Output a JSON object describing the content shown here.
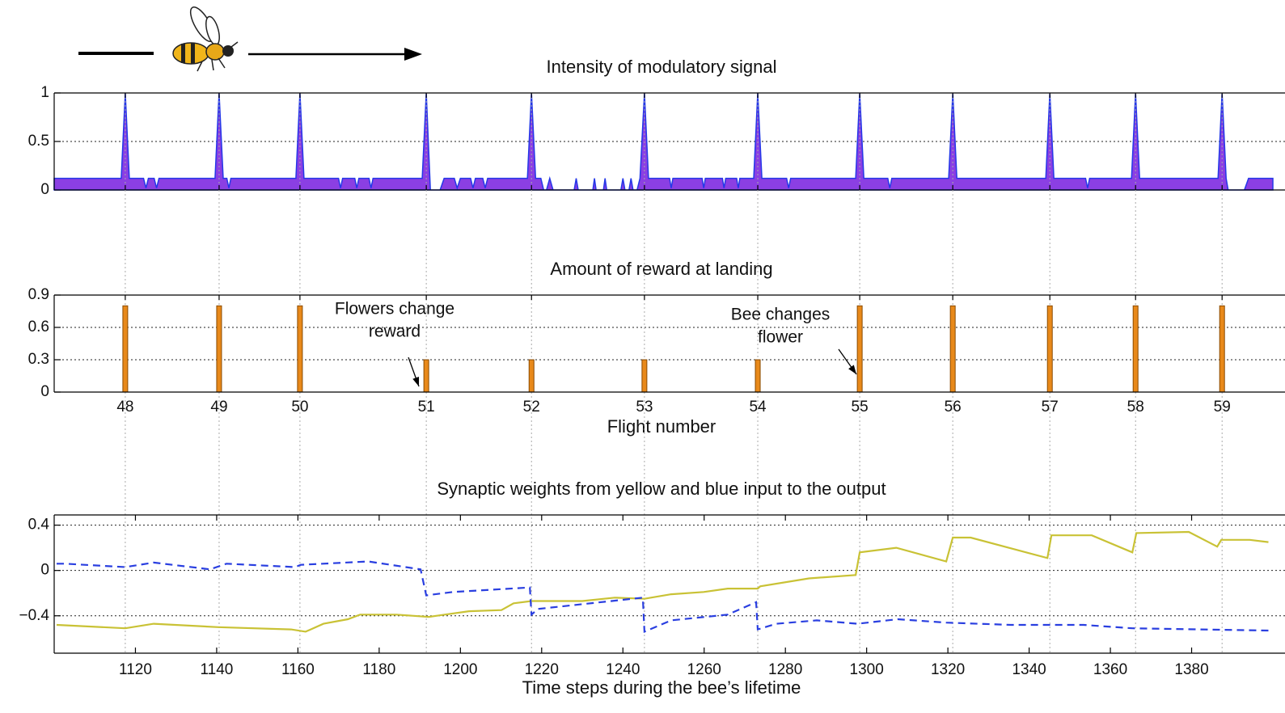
{
  "chart_data": [
    {
      "type": "area",
      "title": "Intensity of modulatory signal",
      "color": "#8b3fe3",
      "line_color": "#2438e8",
      "xlim": [
        1100,
        1400
      ],
      "ylim": [
        0,
        1
      ],
      "yticks": [
        0,
        0.5,
        1
      ],
      "grid": true,
      "x": [
        1100,
        1116.5,
        1117.5,
        1118.5,
        1122,
        1122.6,
        1123.2,
        1124.6,
        1125.2,
        1125.8,
        1139.6,
        1140.6,
        1141.6,
        1142.5,
        1143,
        1143.5,
        1159.5,
        1160.5,
        1161.5,
        1170,
        1170.5,
        1171,
        1174,
        1174.5,
        1175,
        1177.5,
        1178,
        1178.5,
        1190.6,
        1191.6,
        1192.6,
        1195,
        1196,
        1198.5,
        1199.2,
        1200,
        1202.5,
        1203.1,
        1203.7,
        1205.5,
        1206.1,
        1206.7,
        1216.5,
        1217.5,
        1218.5,
        1219.8,
        1220.5,
        1221.2,
        1222,
        1222.8,
        1228,
        1228.5,
        1229,
        1232.6,
        1233,
        1233.4,
        1235.2,
        1235.6,
        1236,
        1239.5,
        1240,
        1240.5,
        1241.5,
        1242,
        1242.5,
        1243.5,
        1244.2,
        1245.3,
        1246.3,
        1251.5,
        1251.9,
        1252.3,
        1259.5,
        1259.9,
        1260.3,
        1264.5,
        1264.9,
        1265.3,
        1268,
        1268.4,
        1268.8,
        1272.2,
        1273.2,
        1274.2,
        1280.3,
        1280.8,
        1281.3,
        1297.3,
        1298.3,
        1299.3,
        1305.2,
        1305.7,
        1306.2,
        1320.2,
        1321.2,
        1322.2,
        1344.1,
        1345.1,
        1346.1,
        1353.9,
        1354.4,
        1354.9,
        1365.2,
        1366.2,
        1367.2,
        1386.5,
        1387.5,
        1388.5,
        1389,
        1393,
        1394,
        1400
      ],
      "values": [
        0.12,
        0.12,
        1,
        0.12,
        0.12,
        0.02,
        0.12,
        0.12,
        0.02,
        0.12,
        0.12,
        1,
        0.12,
        0.12,
        0.02,
        0.12,
        0.12,
        1,
        0.12,
        0.12,
        0.02,
        0.12,
        0.12,
        0.02,
        0.12,
        0.12,
        0.02,
        0.12,
        0.12,
        1,
        0,
        0,
        0.12,
        0.12,
        0.02,
        0.12,
        0.12,
        0.02,
        0.12,
        0.12,
        0.02,
        0.12,
        0.12,
        1,
        0.12,
        0.12,
        0,
        0,
        0.12,
        0,
        0,
        0.12,
        0,
        0,
        0.12,
        0,
        0,
        0.12,
        0,
        0,
        0.12,
        0,
        0,
        0.12,
        0,
        0,
        0.12,
        1,
        0.12,
        0.12,
        0.02,
        0.12,
        0.12,
        0.02,
        0.12,
        0.12,
        0.02,
        0.12,
        0.12,
        0.02,
        0.12,
        0.12,
        1,
        0.12,
        0.12,
        0.02,
        0.12,
        0.12,
        1,
        0.12,
        0.12,
        0.02,
        0.12,
        0.12,
        1,
        0.12,
        0.12,
        1,
        0.12,
        0.12,
        0.02,
        0.12,
        0.12,
        1,
        0.12,
        0.12,
        1,
        0.12,
        0,
        0,
        0.12,
        0.12
      ]
    },
    {
      "type": "bar",
      "title": "Amount of reward at landing",
      "xlabel": "Flight number",
      "color": "#e8891a",
      "categories": [
        "48",
        "49",
        "50",
        "51",
        "52",
        "53",
        "54",
        "55",
        "56",
        "57",
        "58",
        "59"
      ],
      "x": [
        1117.5,
        1140.6,
        1160.5,
        1191.6,
        1217.5,
        1245.3,
        1273.2,
        1298.3,
        1321.2,
        1345.1,
        1366.2,
        1387.5
      ],
      "values": [
        0.8,
        0.8,
        0.8,
        0.3,
        0.3,
        0.3,
        0.3,
        0.8,
        0.8,
        0.8,
        0.8,
        0.8
      ],
      "xlim": [
        1100,
        1400
      ],
      "ylim": [
        0,
        0.9
      ],
      "yticks": [
        0,
        0.3,
        0.6,
        0.9
      ],
      "grid": true,
      "annotations": [
        {
          "lines": [
            "Flowers change",
            "reward"
          ]
        },
        {
          "lines": [
            "Bee changes",
            "flower"
          ]
        }
      ]
    },
    {
      "type": "line",
      "title": "Synaptic weights from yellow and blue input to the output",
      "xlabel": "Time steps during the bee’s lifetime",
      "xlim": [
        1100,
        1400
      ],
      "xticks": [
        1120,
        1140,
        1160,
        1180,
        1200,
        1220,
        1240,
        1260,
        1280,
        1300,
        1320,
        1340,
        1360,
        1380
      ],
      "ylim": [
        -0.73,
        0.49
      ],
      "yticks": [
        {
          "value": -0.4,
          "label": "−0.4"
        },
        0,
        0.4
      ],
      "grid": true,
      "series": [
        {
          "color": "#c9c235",
          "linestyle": "solid",
          "x": [
            1100.6,
            1117.5,
            1124.5,
            1140.4,
            1158.3,
            1161.9,
            1166.3,
            1172.3,
            1175.3,
            1184.2,
            1192.2,
            1194.2,
            1202.1,
            1210.1,
            1213.1,
            1217.5,
            1230,
            1238,
            1245.3,
            1251.9,
            1259.9,
            1265.8,
            1273.2,
            1273.8,
            1285.8,
            1297.3,
            1298.3,
            1307.3,
            1319.6,
            1321.2,
            1325.6,
            1344.5,
            1345.5,
            1355.4,
            1365.4,
            1366.4,
            1379.3,
            1386.3,
            1387.3,
            1394.3,
            1398.9
          ],
          "values": [
            -0.48,
            -0.51,
            -0.47,
            -0.5,
            -0.52,
            -0.54,
            -0.47,
            -0.43,
            -0.39,
            -0.39,
            -0.41,
            -0.4,
            -0.36,
            -0.35,
            -0.29,
            -0.27,
            -0.27,
            -0.24,
            -0.25,
            -0.21,
            -0.19,
            -0.16,
            -0.16,
            -0.14,
            -0.07,
            -0.04,
            0.16,
            0.2,
            0.08,
            0.29,
            0.29,
            0.11,
            0.31,
            0.31,
            0.16,
            0.33,
            0.34,
            0.21,
            0.27,
            0.27,
            0.25
          ]
        },
        {
          "color": "#2a3fe0",
          "linestyle": "dashed",
          "x": [
            1100.6,
            1102.6,
            1117.5,
            1124.5,
            1138.4,
            1142.4,
            1159.3,
            1160.7,
            1177.3,
            1190.2,
            1191.6,
            1198.2,
            1217.1,
            1217.5,
            1219.1,
            1244.9,
            1245.3,
            1251.9,
            1265.8,
            1272.8,
            1273.2,
            1277.8,
            1287.7,
            1297.7,
            1307.7,
            1319.6,
            1335.5,
            1353.4,
            1365.4,
            1398.9
          ],
          "values": [
            0.06,
            0.06,
            0.03,
            0.07,
            0.01,
            0.06,
            0.03,
            0.05,
            0.08,
            0.01,
            -0.22,
            -0.19,
            -0.15,
            -0.39,
            -0.34,
            -0.24,
            -0.54,
            -0.44,
            -0.39,
            -0.28,
            -0.52,
            -0.47,
            -0.44,
            -0.47,
            -0.43,
            -0.46,
            -0.48,
            -0.48,
            -0.51,
            -0.53
          ]
        }
      ]
    }
  ]
}
